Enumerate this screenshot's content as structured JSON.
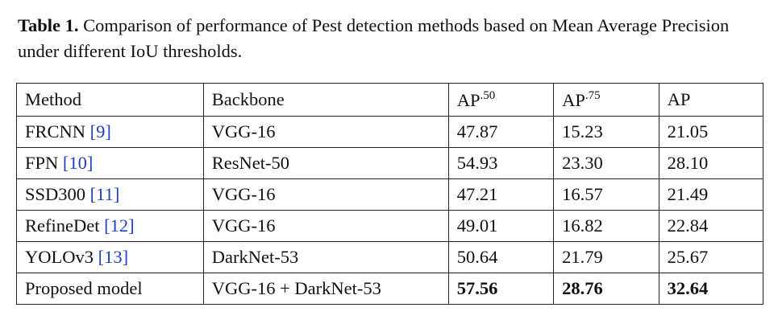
{
  "caption": {
    "label": "Table 1.",
    "text": "Comparison of performance of Pest detection methods based on Mean Average Precision under different IoU thresholds."
  },
  "table": {
    "headers": {
      "method": "Method",
      "backbone": "Backbone",
      "ap50_base": "AP",
      "ap50_sup": ".50",
      "ap75_base": "AP",
      "ap75_sup": ".75",
      "ap": "AP"
    },
    "rows": [
      {
        "method": "FRCNN",
        "ref": "[9]",
        "backbone": "VGG-16",
        "ap50": "47.87",
        "ap75": "15.23",
        "ap": "21.05"
      },
      {
        "method": "FPN",
        "ref": "[10]",
        "backbone": "ResNet-50",
        "ap50": "54.93",
        "ap75": "23.30",
        "ap": "28.10"
      },
      {
        "method": "SSD300",
        "ref": "[11]",
        "backbone": "VGG-16",
        "ap50": "47.21",
        "ap75": "16.57",
        "ap": "21.49"
      },
      {
        "method": "RefineDet",
        "ref": "[12]",
        "backbone": "VGG-16",
        "ap50": "49.01",
        "ap75": "16.82",
        "ap": "22.84"
      },
      {
        "method": "YOLOv3",
        "ref": "[13]",
        "backbone": "DarkNet-53",
        "ap50": "50.64",
        "ap75": "21.79",
        "ap": "25.67"
      },
      {
        "method": "Proposed model",
        "ref": "",
        "backbone": "VGG-16 + DarkNet-53",
        "ap50": "57.56",
        "ap75": "28.76",
        "ap": "32.64"
      }
    ],
    "colors": {
      "reference_link": "#1f3fbf",
      "text": "#111111",
      "border": "#222222"
    }
  }
}
